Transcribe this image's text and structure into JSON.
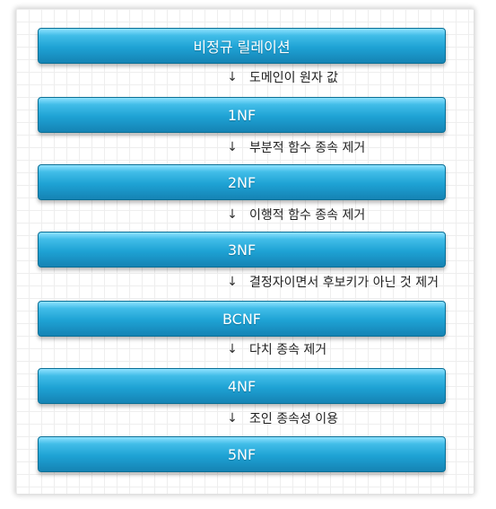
{
  "stages": [
    "비정규 릴레이션",
    "1NF",
    "2NF",
    "3NF",
    "BCNF",
    "4NF",
    "5NF"
  ],
  "transitions": [
    "도메인이 원자 값",
    "부분적 함수 종속 제거",
    "이행적 함수 종속 제거",
    "결정자이면서 후보키가 아닌 것 제거",
    "다치 종속 제거",
    "조인 종속성 이용"
  ],
  "arrow_glyph": "↓",
  "colors": {
    "bar_top": "#8fe3ff",
    "bar_mid": "#1ea2d4",
    "bar_bottom": "#1583b4",
    "bar_border": "#0b6f95",
    "text": "#222222"
  }
}
